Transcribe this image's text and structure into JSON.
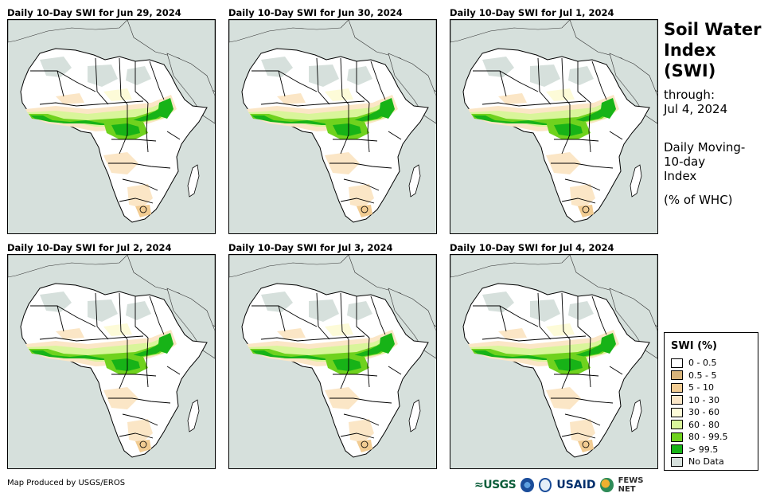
{
  "panels": [
    {
      "title": "Daily 10-Day SWI for Jun 29, 2024"
    },
    {
      "title": "Daily 10-Day SWI for Jun 30, 2024"
    },
    {
      "title": "Daily 10-Day SWI for Jul 1, 2024"
    },
    {
      "title": "Daily 10-Day SWI for Jul 2, 2024"
    },
    {
      "title": "Daily 10-Day SWI for Jul 3, 2024"
    },
    {
      "title": "Daily 10-Day SWI for Jul 4, 2024"
    }
  ],
  "sidebar": {
    "title_line1": "Soil Water",
    "title_line2": "Index",
    "title_line3": "(SWI)",
    "through_label": "through:",
    "through_date": "Jul 4, 2024",
    "desc_line1": "Daily Moving-",
    "desc_line2": "10-day",
    "desc_line3": "Index",
    "units": "(% of WHC)"
  },
  "legend": {
    "title": "SWI (%)",
    "items": [
      {
        "label": "0 - 0.5",
        "color": "#ffffff"
      },
      {
        "label": "0.5 - 5",
        "color": "#d8b47a"
      },
      {
        "label": "5 - 10",
        "color": "#f2cc92"
      },
      {
        "label": "10 - 30",
        "color": "#fbe6c6"
      },
      {
        "label": "30 - 60",
        "color": "#fdfbd8"
      },
      {
        "label": "60 - 80",
        "color": "#d9f59a"
      },
      {
        "label": "80 - 99.5",
        "color": "#6fd21e"
      },
      {
        "label": "> 99.5",
        "color": "#17b317"
      },
      {
        "label": "No Data",
        "color": "#d6e0dc"
      }
    ]
  },
  "footer": {
    "credit": "Map Produced by USGS/EROS",
    "logos": {
      "usgs": "≈USGS",
      "usaid": "USAID",
      "fews": "FEWS NET"
    }
  }
}
